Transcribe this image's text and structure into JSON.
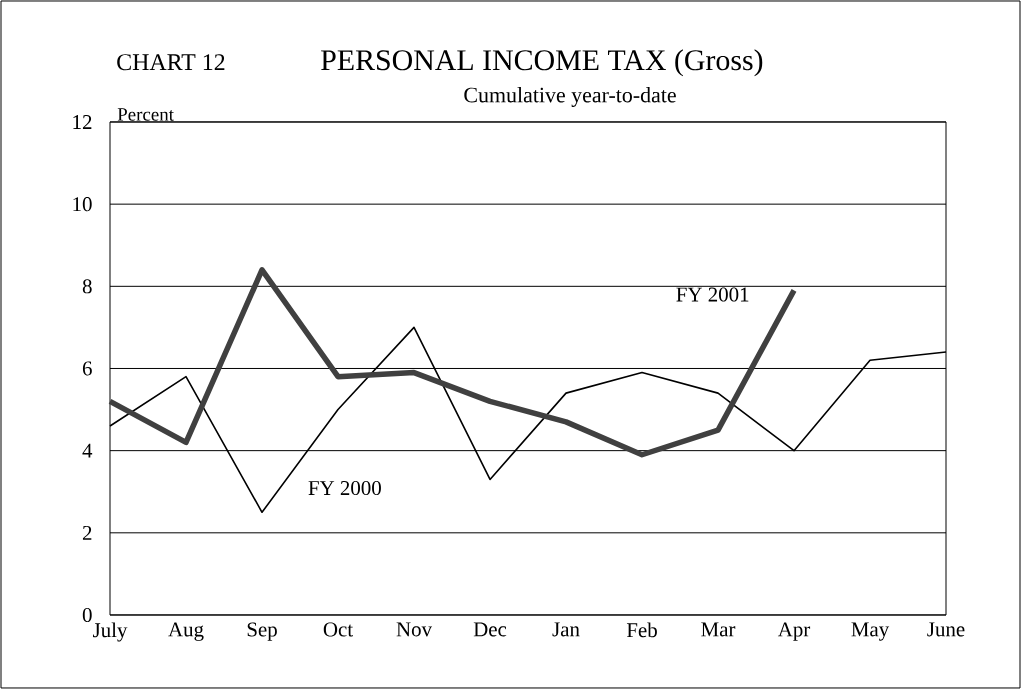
{
  "chart_data": {
    "type": "line",
    "title": "PERSONAL INCOME TAX (Gross)",
    "subtitle": "Cumulative year-to-date",
    "annotations": [
      "CHART 12",
      "Percent"
    ],
    "categories": [
      "July",
      "Aug",
      "Sep",
      "Oct",
      "Nov",
      "Dec",
      "Jan",
      "Feb",
      "Mar",
      "Apr",
      "May",
      "June"
    ],
    "series": [
      {
        "name": "FY 2000",
        "color": "#000000",
        "values": [
          4.6,
          5.8,
          2.5,
          5.0,
          7.0,
          3.3,
          5.4,
          5.9,
          5.4,
          4.0,
          6.2,
          6.4
        ]
      },
      {
        "name": "FY 2001",
        "color": "#404040",
        "values": [
          5.2,
          4.2,
          8.4,
          5.8,
          5.9,
          5.2,
          4.7,
          3.9,
          4.5,
          7.9,
          null,
          null
        ]
      }
    ],
    "ylim": [
      0,
      12
    ],
    "yticks": [
      0,
      2,
      4,
      6,
      8,
      10,
      12
    ],
    "grid": "y",
    "marker": "none",
    "line_style": "solid"
  }
}
